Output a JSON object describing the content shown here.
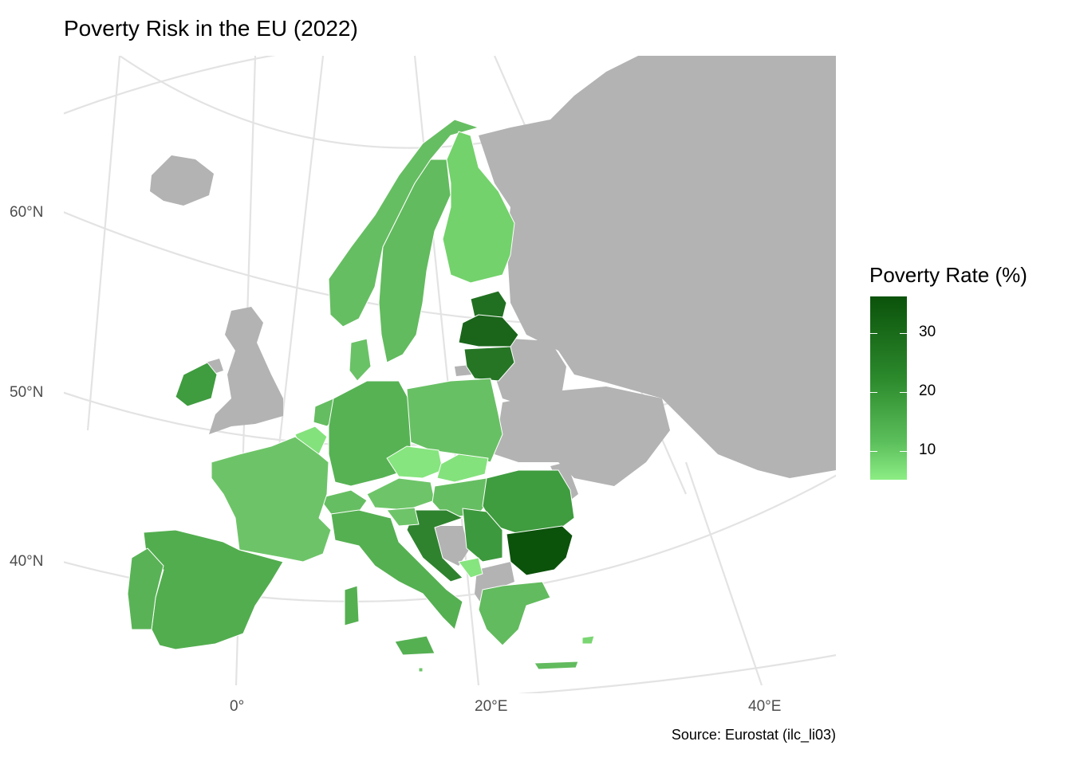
{
  "title": "Poverty Risk in the EU (2022)",
  "source": "Source: Eurostat (ilc_li03)",
  "legend": {
    "title": "Poverty Rate (%)",
    "ticks": [
      "30",
      "20",
      "10"
    ],
    "low_color": "#8ced84",
    "high_color": "#0b520b"
  },
  "axes": {
    "lat_labels": [
      "60°N",
      "50°N",
      "40°N"
    ],
    "lon_labels": [
      "0°",
      "20°E",
      "40°E"
    ]
  },
  "nodata_color": "#b3b3b3",
  "regions": [
    {
      "name": "Bulgaria",
      "color": "#0b520b"
    },
    {
      "name": "Latvia",
      "color": "#1a651a"
    },
    {
      "name": "Estonia",
      "color": "#217021"
    },
    {
      "name": "Lithuania",
      "color": "#257525"
    },
    {
      "name": "Croatia",
      "color": "#2f832f"
    },
    {
      "name": "Romania",
      "color": "#3f9c3f"
    },
    {
      "name": "Ireland",
      "color": "#3f9c3f"
    },
    {
      "name": "Serbia",
      "color": "#3d993d"
    },
    {
      "name": "Spain",
      "color": "#52ad4e"
    },
    {
      "name": "Italy",
      "color": "#55b052"
    },
    {
      "name": "Portugal",
      "color": "#59b356"
    },
    {
      "name": "Germany",
      "color": "#57b254"
    },
    {
      "name": "Greece",
      "color": "#62bb5e"
    },
    {
      "name": "Sweden",
      "color": "#62bb5e"
    },
    {
      "name": "Norway",
      "color": "#66be62"
    },
    {
      "name": "Poland",
      "color": "#68c064"
    },
    {
      "name": "Netherlands",
      "color": "#64bd60"
    },
    {
      "name": "Denmark",
      "color": "#6ac266"
    },
    {
      "name": "Hungary",
      "color": "#66be62"
    },
    {
      "name": "Switzerland",
      "color": "#66be62"
    },
    {
      "name": "Slovenia",
      "color": "#6ec569"
    },
    {
      "name": "France",
      "color": "#6dc468"
    },
    {
      "name": "Austria",
      "color": "#6ec569"
    },
    {
      "name": "Finland",
      "color": "#73d26b"
    },
    {
      "name": "Belgium",
      "color": "#84e27c"
    },
    {
      "name": "Czechia",
      "color": "#86e57e"
    },
    {
      "name": "Slovakia",
      "color": "#84e27c"
    },
    {
      "name": "Montenegro",
      "color": "#86e57e"
    },
    {
      "name": "Cyprus",
      "color": "#7ad672"
    },
    {
      "name": "Malta",
      "color": "#6ec569"
    }
  ]
}
